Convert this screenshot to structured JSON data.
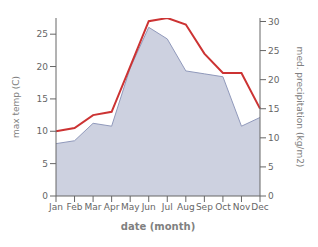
{
  "chart_data": {
    "type": "line",
    "x_label": "date (month)",
    "y_label": "max temp (C)",
    "y2_label": "med. precipitation (kg/m2)",
    "categories": [
      "Jan",
      "Feb",
      "Mar",
      "Apr",
      "May",
      "Jun",
      "Jul",
      "Aug",
      "Sep",
      "Oct",
      "Nov",
      "Dec"
    ],
    "series": [
      {
        "type": "area",
        "axis": "y2",
        "color": "#9099bb",
        "values": [
          9.0,
          9.5,
          12.5,
          12.0,
          22.0,
          29.0,
          27.0,
          21.5,
          21.0,
          20.5,
          12.0,
          13.5
        ]
      },
      {
        "type": "line",
        "color": "#cc3333",
        "values": [
          10.0,
          10.5,
          12.5,
          13.0,
          20.0,
          27.0,
          27.5,
          26.5,
          22.0,
          19.0,
          19.0,
          13.5
        ]
      }
    ],
    "ylim": [
      0,
      27.5
    ],
    "yticks": [
      0,
      5,
      10,
      15,
      20,
      25
    ],
    "y2lim": [
      0,
      30.6
    ],
    "y2ticks": [
      0,
      5,
      10,
      15,
      20,
      25,
      30
    ],
    "grid": false
  }
}
